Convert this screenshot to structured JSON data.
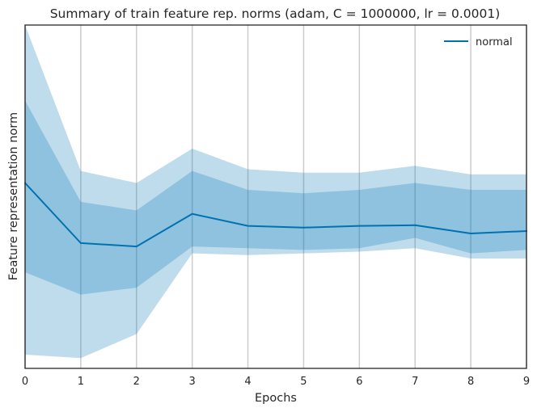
{
  "chart_data": {
    "type": "line",
    "title": "Summary of train feature rep. norms (adam, C = 1000000, lr = 0.0001)",
    "xlabel": "Epochs",
    "ylabel": "Feature representation norm",
    "x": [
      0,
      1,
      2,
      3,
      4,
      5,
      6,
      7,
      8,
      9
    ],
    "xlim": [
      0,
      9
    ],
    "ylim": [
      0,
      100
    ],
    "yticks_visible": false,
    "grid": "vertical",
    "legend_position": "top-right",
    "series": [
      {
        "name": "normal",
        "color": "#0072B2",
        "values": [
          54,
          36.5,
          35.5,
          45,
          41.5,
          41,
          41.5,
          41.7,
          39.3,
          40
        ],
        "band_inner": {
          "lower": [
            28,
            21.5,
            23.5,
            35.5,
            35,
            34.5,
            35,
            38,
            33.5,
            34.5
          ],
          "upper": [
            78,
            48.5,
            46,
            57.5,
            52,
            51,
            52,
            54,
            52,
            52
          ]
        },
        "band_outer": {
          "lower": [
            4,
            3,
            10,
            33.5,
            33,
            33.5,
            34,
            35,
            32,
            32
          ],
          "upper": [
            100,
            57.5,
            54,
            64,
            58,
            57,
            57,
            59,
            56.5,
            56.5
          ]
        }
      }
    ]
  }
}
